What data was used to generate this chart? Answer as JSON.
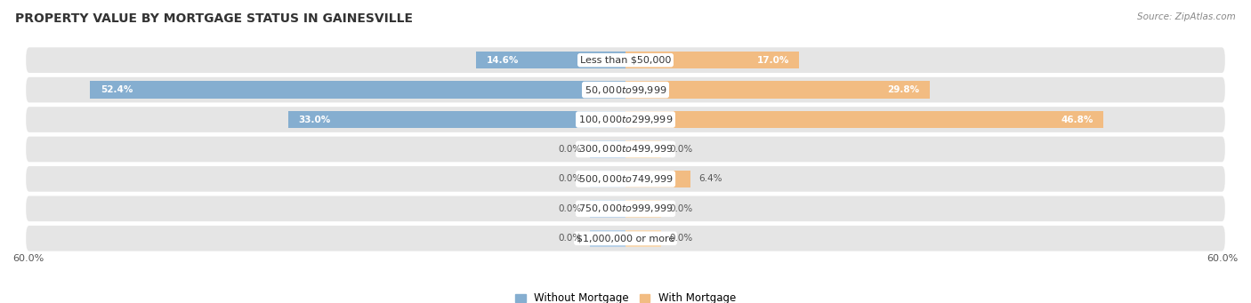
{
  "title": "PROPERTY VALUE BY MORTGAGE STATUS IN GAINESVILLE",
  "source": "Source: ZipAtlas.com",
  "categories": [
    "Less than $50,000",
    "$50,000 to $99,999",
    "$100,000 to $299,999",
    "$300,000 to $499,999",
    "$500,000 to $749,999",
    "$750,000 to $999,999",
    "$1,000,000 or more"
  ],
  "without_mortgage": [
    14.6,
    52.4,
    33.0,
    0.0,
    0.0,
    0.0,
    0.0
  ],
  "with_mortgage": [
    17.0,
    29.8,
    46.8,
    0.0,
    6.4,
    0.0,
    0.0
  ],
  "without_color": "#85aed0",
  "with_color": "#f2bc82",
  "without_color_light": "#b8d1e8",
  "with_color_light": "#f7d9b3",
  "bg_row_color": "#e5e5e5",
  "row_bg_edge": "#ffffff",
  "xlim": 60.0,
  "axis_label_left": "60.0%",
  "axis_label_right": "60.0%",
  "legend_without": "Without Mortgage",
  "legend_with": "With Mortgage",
  "title_fontsize": 10,
  "source_fontsize": 7.5,
  "bar_height": 0.58,
  "min_stub": 3.5,
  "label_inside_threshold": 10
}
